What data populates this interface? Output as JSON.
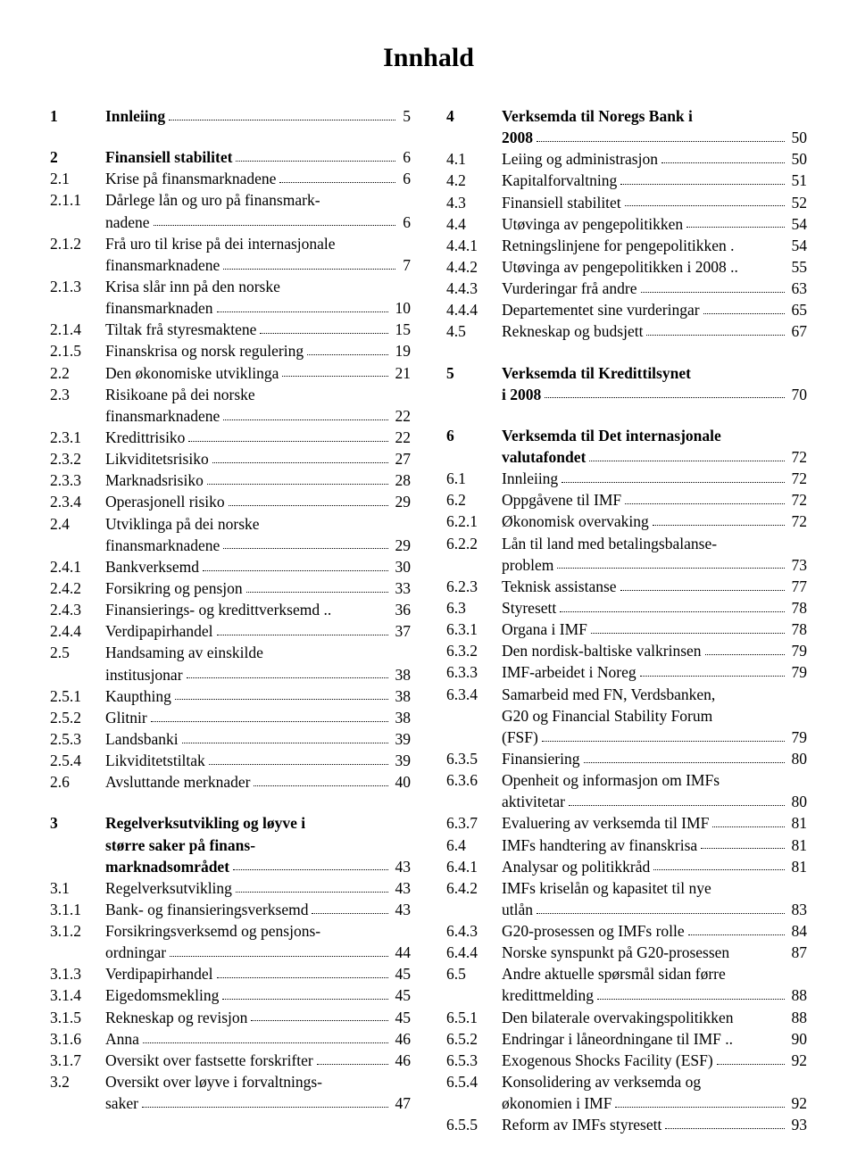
{
  "title": "Innhald",
  "columns": [
    [
      {
        "n": "1",
        "t": "Innleiing",
        "p": "5",
        "bold": true,
        "leader": true
      },
      {
        "spacer": true
      },
      {
        "n": "2",
        "t": "Finansiell stabilitet",
        "p": "6",
        "bold": true,
        "leader": true
      },
      {
        "n": "2.1",
        "t": "Krise på finansmarknadene",
        "p": "6",
        "leader": true
      },
      {
        "n": "2.1.1",
        "t": "Dårlege lån og uro på finansmark-",
        "cont": true
      },
      {
        "n": "",
        "t": "nadene",
        "p": "6",
        "leader": true
      },
      {
        "n": "2.1.2",
        "t": "Frå uro til krise på dei internasjonale",
        "cont": true
      },
      {
        "n": "",
        "t": "finansmarknadene",
        "p": "7",
        "leader": true
      },
      {
        "n": "2.1.3",
        "t": "Krisa slår inn på den norske",
        "cont": true
      },
      {
        "n": "",
        "t": "finansmarknaden",
        "p": "10",
        "leader": true
      },
      {
        "n": "2.1.4",
        "t": "Tiltak frå styresmaktene",
        "p": "15",
        "leader": true
      },
      {
        "n": "2.1.5",
        "t": "Finanskrisa og norsk regulering",
        "p": "19",
        "leader": true
      },
      {
        "n": "2.2",
        "t": "Den økonomiske utviklinga",
        "p": "21",
        "leader": true
      },
      {
        "n": "2.3",
        "t": "Risikoane på dei norske",
        "cont": true
      },
      {
        "n": "",
        "t": "finansmarknadene",
        "p": "22",
        "leader": true
      },
      {
        "n": "2.3.1",
        "t": "Kredittrisiko",
        "p": "22",
        "leader": true
      },
      {
        "n": "2.3.2",
        "t": "Likviditetsrisiko",
        "p": "27",
        "leader": true
      },
      {
        "n": "2.3.3",
        "t": "Marknadsrisiko",
        "p": "28",
        "leader": true
      },
      {
        "n": "2.3.4",
        "t": "Operasjonell risiko",
        "p": "29",
        "leader": true
      },
      {
        "n": "2.4",
        "t": "Utviklinga på dei norske",
        "cont": true
      },
      {
        "n": "",
        "t": "finansmarknadene",
        "p": "29",
        "leader": true
      },
      {
        "n": "2.4.1",
        "t": "Bankverksemd",
        "p": "30",
        "leader": true
      },
      {
        "n": "2.4.2",
        "t": "Forsikring og pensjon",
        "p": "33",
        "leader": true
      },
      {
        "n": "2.4.3",
        "t": "Finansierings- og kredittverksemd ..",
        "p": "36",
        "leader": false,
        "dots_inline": true
      },
      {
        "n": "2.4.4",
        "t": "Verdipapirhandel",
        "p": "37",
        "leader": true
      },
      {
        "n": "2.5",
        "t": "Handsaming av einskilde",
        "cont": true
      },
      {
        "n": "",
        "t": "institusjonar",
        "p": "38",
        "leader": true
      },
      {
        "n": "2.5.1",
        "t": "Kaupthing",
        "p": "38",
        "leader": true
      },
      {
        "n": "2.5.2",
        "t": "Glitnir",
        "p": "38",
        "leader": true
      },
      {
        "n": "2.5.3",
        "t": "Landsbanki",
        "p": "39",
        "leader": true
      },
      {
        "n": "2.5.4",
        "t": "Likviditetstiltak",
        "p": "39",
        "leader": true
      },
      {
        "n": "2.6",
        "t": "Avsluttande merknader",
        "p": "40",
        "leader": true
      },
      {
        "spacer": true
      },
      {
        "n": "3",
        "t": "Regelverksutvikling og løyve i",
        "bold": true,
        "cont": true
      },
      {
        "n": "",
        "t": "større saker på finans-",
        "bold": true,
        "cont": true
      },
      {
        "n": "",
        "t": "marknadsområdet",
        "p": "43",
        "bold": true,
        "leader": true
      },
      {
        "n": "3.1",
        "t": "Regelverksutvikling",
        "p": "43",
        "leader": true
      },
      {
        "n": "3.1.1",
        "t": "Bank- og finansieringsverksemd",
        "p": "43",
        "leader": true
      },
      {
        "n": "3.1.2",
        "t": "Forsikringsverksemd og pensjons-",
        "cont": true
      },
      {
        "n": "",
        "t": "ordningar",
        "p": "44",
        "leader": true
      },
      {
        "n": "3.1.3",
        "t": "Verdipapirhandel",
        "p": "45",
        "leader": true
      },
      {
        "n": "3.1.4",
        "t": "Eigedomsmekling",
        "p": "45",
        "leader": true
      },
      {
        "n": "3.1.5",
        "t": "Rekneskap og revisjon",
        "p": "45",
        "leader": true
      },
      {
        "n": "3.1.6",
        "t": "Anna",
        "p": "46",
        "leader": true
      },
      {
        "n": "3.1.7",
        "t": "Oversikt over fastsette forskrifter",
        "p": "46",
        "leader": true
      },
      {
        "n": "3.2",
        "t": "Oversikt over løyve i forvaltnings-",
        "cont": true
      },
      {
        "n": "",
        "t": "saker",
        "p": "47",
        "leader": true
      }
    ],
    [
      {
        "n": "4",
        "t": "Verksemda til Noregs Bank i",
        "bold": true,
        "cont": true
      },
      {
        "n": "",
        "t": "2008",
        "p": "50",
        "bold": true,
        "leader": true
      },
      {
        "n": "4.1",
        "t": "Leiing og administrasjon",
        "p": "50",
        "leader": true
      },
      {
        "n": "4.2",
        "t": "Kapitalforvaltning",
        "p": "51",
        "leader": true
      },
      {
        "n": "4.3",
        "t": "Finansiell stabilitet",
        "p": "52",
        "leader": true
      },
      {
        "n": "4.4",
        "t": "Utøvinga av pengepolitikken",
        "p": "54",
        "leader": true
      },
      {
        "n": "4.4.1",
        "t": "Retningslinjene for pengepolitikken .",
        "p": "54",
        "leader": false,
        "dots_inline": true
      },
      {
        "n": "4.4.2",
        "t": "Utøvinga av pengepolitikken i 2008 ..",
        "p": "55",
        "leader": false,
        "dots_inline": true
      },
      {
        "n": "4.4.3",
        "t": "Vurderingar frå andre",
        "p": "63",
        "leader": true
      },
      {
        "n": "4.4.4",
        "t": "Departementet sine vurderingar",
        "p": "65",
        "leader": true
      },
      {
        "n": "4.5",
        "t": "Rekneskap og budsjett",
        "p": "67",
        "leader": true
      },
      {
        "spacer": true
      },
      {
        "n": "5",
        "t": "Verksemda til Kredittilsynet",
        "bold": true,
        "cont": true
      },
      {
        "n": "",
        "t": "i 2008",
        "p": "70",
        "bold": true,
        "leader": true
      },
      {
        "spacer": true
      },
      {
        "n": "6",
        "t": "Verksemda til Det internasjonale",
        "bold": true,
        "cont": true
      },
      {
        "n": "",
        "t": "valutafondet",
        "p": "72",
        "bold": true,
        "leader": true
      },
      {
        "n": "6.1",
        "t": "Innleiing",
        "p": "72",
        "leader": true
      },
      {
        "n": "6.2",
        "t": "Oppgåvene til IMF",
        "p": "72",
        "leader": true
      },
      {
        "n": "6.2.1",
        "t": "Økonomisk overvaking",
        "p": "72",
        "leader": true
      },
      {
        "n": "6.2.2",
        "t": "Lån til land med betalingsbalanse-",
        "cont": true
      },
      {
        "n": "",
        "t": "problem",
        "p": "73",
        "leader": true
      },
      {
        "n": "6.2.3",
        "t": "Teknisk assistanse",
        "p": "77",
        "leader": true
      },
      {
        "n": "6.3",
        "t": "Styresett",
        "p": "78",
        "leader": true
      },
      {
        "n": "6.3.1",
        "t": "Organa i IMF",
        "p": "78",
        "leader": true
      },
      {
        "n": "6.3.2",
        "t": "Den nordisk-baltiske valkrinsen",
        "p": "79",
        "leader": true
      },
      {
        "n": "6.3.3",
        "t": "IMF-arbeidet i Noreg",
        "p": "79",
        "leader": true
      },
      {
        "n": "6.3.4",
        "t": "Samarbeid med FN, Verdsbanken,",
        "cont": true
      },
      {
        "n": "",
        "t": "G20 og Financial Stability Forum",
        "cont": true
      },
      {
        "n": "",
        "t": "(FSF)",
        "p": "79",
        "leader": true
      },
      {
        "n": "6.3.5",
        "t": "Finansiering",
        "p": "80",
        "leader": true
      },
      {
        "n": "6.3.6",
        "t": "Openheit og informasjon om IMFs",
        "cont": true
      },
      {
        "n": "",
        "t": "aktivitetar",
        "p": "80",
        "leader": true
      },
      {
        "n": "6.3.7",
        "t": "Evaluering av verksemda til IMF",
        "p": "81",
        "leader": true
      },
      {
        "n": "6.4",
        "t": "IMFs handtering av finanskrisa",
        "p": "81",
        "leader": true
      },
      {
        "n": "6.4.1",
        "t": "Analysar og politikkråd",
        "p": "81",
        "leader": true
      },
      {
        "n": "6.4.2",
        "t": "IMFs kriselån og kapasitet til nye",
        "cont": true
      },
      {
        "n": "",
        "t": "utlån",
        "p": "83",
        "leader": true
      },
      {
        "n": "6.4.3",
        "t": "G20-prosessen og IMFs rolle",
        "p": "84",
        "leader": true
      },
      {
        "n": "6.4.4",
        "t": "Norske synspunkt på G20-prosessen",
        "p": "87",
        "leader": false
      },
      {
        "n": "6.5",
        "t": "Andre aktuelle spørsmål sidan førre",
        "cont": true
      },
      {
        "n": "",
        "t": "kredittmelding",
        "p": "88",
        "leader": true
      },
      {
        "n": "6.5.1",
        "t": "Den bilaterale overvakingspolitikken",
        "p": "88",
        "leader": false
      },
      {
        "n": "6.5.2",
        "t": "Endringar i låneordningane til IMF ..",
        "p": "90",
        "leader": false,
        "dots_inline": true
      },
      {
        "n": "6.5.3",
        "t": "Exogenous Shocks Facility (ESF)",
        "p": "92",
        "leader": true
      },
      {
        "n": "6.5.4",
        "t": "Konsolidering av verksemda og",
        "cont": true
      },
      {
        "n": "",
        "t": "økonomien i IMF",
        "p": "92",
        "leader": true
      },
      {
        "n": "6.5.5",
        "t": "Reform av IMFs styresett",
        "p": "93",
        "leader": true
      }
    ]
  ]
}
